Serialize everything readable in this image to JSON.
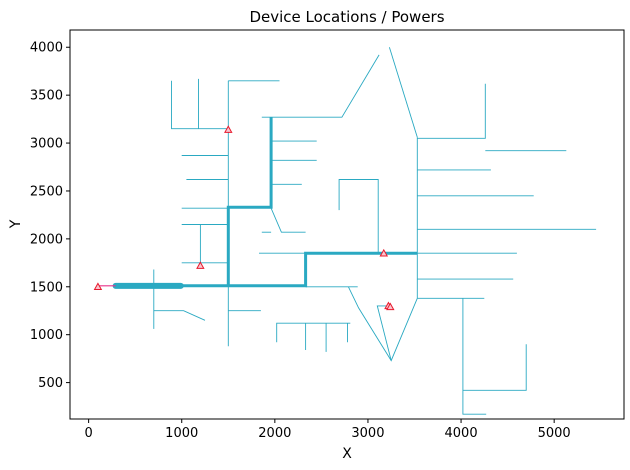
{
  "chart_data": {
    "type": "line",
    "title": "Device Locations / Powers",
    "xlabel": "X",
    "ylabel": "Y",
    "xlim": [
      -200,
      5750
    ],
    "ylim": [
      120,
      4180
    ],
    "xticks": [
      0,
      1000,
      2000,
      3000,
      4000,
      5000
    ],
    "yticks": [
      500,
      1000,
      1500,
      2000,
      2500,
      3000,
      3500,
      4000
    ],
    "grid": false,
    "colors": {
      "network": "#2aa9c2",
      "device": "#e8192c",
      "link": "#e8348c",
      "axis": "#000000"
    },
    "thin_segments": [
      [
        [
          890,
          3650
        ],
        [
          890,
          3150
        ],
        [
          1500,
          3150
        ]
      ],
      [
        [
          1180,
          3670
        ],
        [
          1180,
          3150
        ]
      ],
      [
        [
          1500,
          3650
        ],
        [
          2050,
          3650
        ]
      ],
      [
        [
          1500,
          3650
        ],
        [
          1500,
          880
        ]
      ],
      [
        [
          1000,
          2870
        ],
        [
          1500,
          2870
        ]
      ],
      [
        [
          1050,
          2620
        ],
        [
          1500,
          2620
        ]
      ],
      [
        [
          1000,
          2320
        ],
        [
          1500,
          2320
        ]
      ],
      [
        [
          1000,
          2150
        ],
        [
          1500,
          2150
        ]
      ],
      [
        [
          1200,
          2150
        ],
        [
          1200,
          1750
        ]
      ],
      [
        [
          1000,
          1750
        ],
        [
          1500,
          1750
        ]
      ],
      [
        [
          700,
          1680
        ],
        [
          700,
          1060
        ]
      ],
      [
        [
          700,
          1250
        ],
        [
          1020,
          1250
        ],
        [
          1250,
          1150
        ]
      ],
      [
        [
          1500,
          1250
        ],
        [
          1850,
          1250
        ]
      ],
      [
        [
          1860,
          3270
        ],
        [
          2720,
          3270
        ],
        [
          3120,
          3920
        ]
      ],
      [
        [
          1960,
          3270
        ],
        [
          1960,
          2320
        ],
        [
          2070,
          2070
        ],
        [
          2330,
          2070
        ]
      ],
      [
        [
          1960,
          3020
        ],
        [
          2450,
          3020
        ]
      ],
      [
        [
          1960,
          2820
        ],
        [
          2450,
          2820
        ]
      ],
      [
        [
          1960,
          2570
        ],
        [
          2290,
          2570
        ]
      ],
      [
        [
          1860,
          2070
        ],
        [
          1960,
          2070
        ]
      ],
      [
        [
          1830,
          1850
        ],
        [
          2330,
          1850
        ]
      ],
      [
        [
          2330,
          1500
        ],
        [
          2890,
          1500
        ]
      ],
      [
        [
          2690,
          2300
        ],
        [
          2690,
          2620
        ],
        [
          3110,
          2620
        ],
        [
          3110,
          1850
        ]
      ],
      [
        [
          2850,
          1800
        ],
        [
          2850,
          1800
        ]
      ],
      [
        [
          3230,
          4000
        ],
        [
          3530,
          3060
        ]
      ],
      [
        [
          3530,
          3060
        ],
        [
          3530,
          1380
        ]
      ],
      [
        [
          3530,
          3050
        ],
        [
          4260,
          3050
        ],
        [
          4260,
          3620
        ]
      ],
      [
        [
          4260,
          2920
        ],
        [
          5130,
          2920
        ]
      ],
      [
        [
          3530,
          2720
        ],
        [
          4320,
          2720
        ]
      ],
      [
        [
          3530,
          2450
        ],
        [
          4780,
          2450
        ]
      ],
      [
        [
          3530,
          2100
        ],
        [
          5450,
          2100
        ]
      ],
      [
        [
          3530,
          1850
        ],
        [
          4600,
          1850
        ]
      ],
      [
        [
          3530,
          1580
        ],
        [
          4560,
          1580
        ]
      ],
      [
        [
          3530,
          1380
        ],
        [
          4250,
          1380
        ]
      ],
      [
        [
          3530,
          1380
        ],
        [
          3250,
          730
        ],
        [
          2900,
          1280
        ],
        [
          2790,
          1500
        ]
      ],
      [
        [
          3250,
          730
        ],
        [
          3100,
          1300
        ],
        [
          3250,
          1300
        ]
      ],
      [
        [
          2810,
          1120
        ],
        [
          2020,
          1120
        ],
        [
          2020,
          920
        ]
      ],
      [
        [
          2330,
          1120
        ],
        [
          2330,
          840
        ]
      ],
      [
        [
          2550,
          1120
        ],
        [
          2550,
          820
        ]
      ],
      [
        [
          2780,
          1120
        ],
        [
          2780,
          920
        ]
      ],
      [
        [
          4020,
          1380
        ],
        [
          4020,
          170
        ],
        [
          4270,
          170
        ]
      ],
      [
        [
          4020,
          420
        ],
        [
          4700,
          420
        ],
        [
          4700,
          900
        ]
      ]
    ],
    "thick_segments": [
      [
        [
          290,
          1510
        ],
        [
          1500,
          1510
        ],
        [
          2330,
          1510
        ],
        [
          2330,
          1850
        ],
        [
          3530,
          1850
        ]
      ],
      [
        [
          1500,
          1510
        ],
        [
          1500,
          2330
        ],
        [
          1960,
          2330
        ],
        [
          1960,
          3270
        ]
      ]
    ],
    "device_links": [
      [
        [
          100,
          1510
        ],
        [
          290,
          1510
        ]
      ]
    ],
    "devices": [
      {
        "x": 100,
        "y": 1500
      },
      {
        "x": 1200,
        "y": 1720
      },
      {
        "x": 1500,
        "y": 3140
      },
      {
        "x": 3170,
        "y": 1850
      },
      {
        "x": 3220,
        "y": 1300
      },
      {
        "x": 3240,
        "y": 1290
      }
    ]
  }
}
